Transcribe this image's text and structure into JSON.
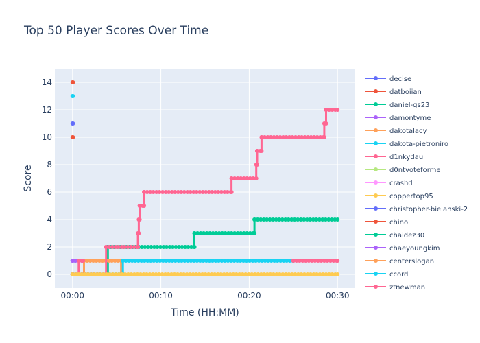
{
  "chart_data": {
    "type": "line",
    "title": "Top 50 Player Scores Over Time",
    "xlabel": "Time (HH:MM)",
    "ylabel": "Score",
    "xlim": [
      -2,
      32
    ],
    "ylim": [
      -1,
      15
    ],
    "x_ticks": [
      0,
      10,
      20,
      30
    ],
    "x_tick_labels": [
      "00:00",
      "00:10",
      "00:20",
      "00:30"
    ],
    "y_ticks": [
      0,
      2,
      4,
      6,
      8,
      10,
      12,
      14
    ],
    "grid": true,
    "legend_position": "right",
    "series": [
      {
        "name": "decise",
        "color": "#636efa",
        "points": [
          [
            0,
            11
          ],
          [
            0.05,
            11
          ]
        ]
      },
      {
        "name": "datboiian",
        "color": "#ef553b",
        "points": [
          [
            0,
            14
          ],
          [
            0.05,
            14
          ]
        ]
      },
      {
        "name": "daniel-gs23",
        "color": "#00cc96",
        "points": [
          [
            0,
            0
          ],
          [
            0.05,
            0
          ]
        ]
      },
      {
        "name": "damontyme",
        "color": "#ab63fa",
        "points": [
          [
            0,
            1
          ],
          [
            0.05,
            1
          ]
        ]
      },
      {
        "name": "dakotalacy",
        "color": "#ffa15a",
        "points": [
          [
            0,
            0
          ],
          [
            0.05,
            0
          ]
        ]
      },
      {
        "name": "dakota-pietroniro",
        "color": "#19d3f3",
        "points": [
          [
            0,
            13
          ],
          [
            0.05,
            13
          ]
        ]
      },
      {
        "name": "d1nkydau",
        "color": "#ff6692",
        "points": [
          [
            0,
            0
          ],
          [
            0.05,
            0
          ]
        ]
      },
      {
        "name": "d0ntvoteforme",
        "color": "#b6e880",
        "points": [
          [
            0,
            0
          ],
          [
            0.05,
            0
          ]
        ]
      },
      {
        "name": "crashd",
        "color": "#ff97ff",
        "points": [
          [
            0,
            0
          ],
          [
            0.05,
            0
          ]
        ]
      },
      {
        "name": "coppertop95",
        "color": "#fecb52",
        "points": [
          [
            0,
            0
          ],
          [
            30,
            0
          ]
        ]
      },
      {
        "name": "christopher-bielanski-2",
        "color": "#636efa",
        "points": [
          [
            0,
            1
          ],
          [
            0.3,
            1
          ]
        ]
      },
      {
        "name": "chino",
        "color": "#ef553b",
        "points": [
          [
            0,
            10
          ],
          [
            0.05,
            10
          ]
        ]
      },
      {
        "name": "chaidez30",
        "color": "#00cc96",
        "points": [
          [
            0,
            0
          ],
          [
            4,
            0
          ],
          [
            4,
            2
          ],
          [
            13.8,
            2
          ],
          [
            13.8,
            3
          ],
          [
            20.6,
            3
          ],
          [
            20.6,
            4
          ],
          [
            30,
            4
          ]
        ]
      },
      {
        "name": "chaeyoungkim",
        "color": "#ab63fa",
        "points": [
          [
            0,
            1
          ],
          [
            1.2,
            1
          ]
        ]
      },
      {
        "name": "centerslogan",
        "color": "#ffa15a",
        "points": [
          [
            0,
            0
          ],
          [
            1.3,
            0
          ],
          [
            1.3,
            1
          ],
          [
            5.5,
            1
          ],
          [
            5.5,
            0
          ],
          [
            5.7,
            0
          ]
        ]
      },
      {
        "name": "ccord",
        "color": "#19d3f3",
        "points": [
          [
            0,
            0
          ],
          [
            5.7,
            0
          ],
          [
            5.7,
            1
          ],
          [
            25,
            1
          ]
        ]
      },
      {
        "name": "ztnewman",
        "color": "#ff6692",
        "points": [
          [
            0,
            0
          ],
          [
            3.8,
            0
          ],
          [
            3.8,
            2
          ],
          [
            7.4,
            2
          ],
          [
            7.4,
            3
          ],
          [
            7.5,
            3
          ],
          [
            7.5,
            4
          ],
          [
            7.6,
            4
          ],
          [
            7.6,
            5
          ],
          [
            8.1,
            5
          ],
          [
            8.1,
            6
          ],
          [
            18,
            6
          ],
          [
            18,
            7
          ],
          [
            20.8,
            7
          ],
          [
            20.8,
            8
          ],
          [
            20.9,
            8
          ],
          [
            20.9,
            9
          ],
          [
            21.4,
            9
          ],
          [
            21.4,
            10
          ],
          [
            28.5,
            10
          ],
          [
            28.5,
            11
          ],
          [
            28.7,
            11
          ],
          [
            28.7,
            12
          ],
          [
            30,
            12
          ]
        ]
      }
    ],
    "extra_series": [
      {
        "color": "#ff6692",
        "points": [
          [
            25,
            1
          ],
          [
            30,
            1
          ]
        ]
      },
      {
        "color": "#ff6692",
        "points": [
          [
            0.7,
            0
          ],
          [
            0.7,
            1
          ],
          [
            1.2,
            1
          ]
        ]
      }
    ]
  }
}
